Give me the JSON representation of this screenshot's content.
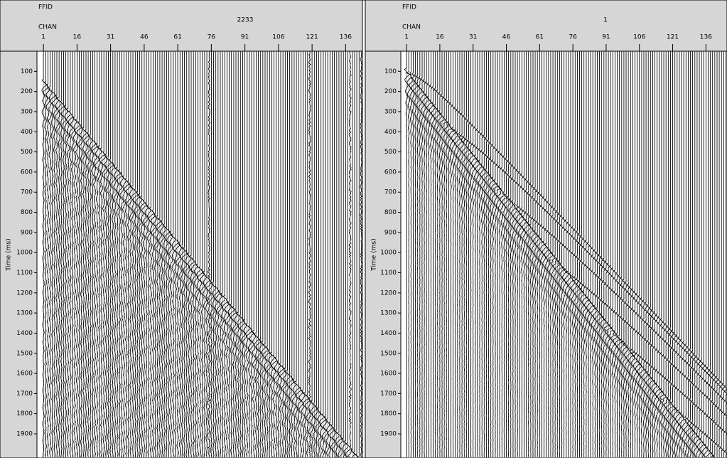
{
  "chart_data": [
    {
      "type": "wiggle",
      "ffid_label": "FFID",
      "ffid": 2233,
      "chan_label": "CHAN",
      "ylabel": "Time (ms)",
      "xlim": [
        -1.9,
        143.5
      ],
      "xticks": [
        1,
        16,
        31,
        46,
        61,
        76,
        91,
        106,
        121,
        136
      ],
      "ylim": [
        0,
        2020
      ],
      "yticks": [
        100,
        200,
        300,
        400,
        500,
        600,
        700,
        800,
        900,
        1000,
        1100,
        1200,
        1300,
        1400,
        1500,
        1600,
        1700,
        1800,
        1900
      ]
    },
    {
      "type": "wiggle",
      "ffid_label": "FFID",
      "ffid": 1,
      "chan_label": "CHAN",
      "ylabel": "Time (ms)",
      "xlim": [
        -1.6,
        145.5
      ],
      "xticks": [
        1,
        16,
        31,
        46,
        61,
        76,
        91,
        106,
        121,
        136
      ],
      "ylim": [
        0,
        2020
      ],
      "yticks": [
        100,
        200,
        300,
        400,
        500,
        600,
        700,
        800,
        900,
        1000,
        1100,
        1200,
        1300,
        1400,
        1500,
        1600,
        1700,
        1800,
        1900
      ]
    }
  ]
}
